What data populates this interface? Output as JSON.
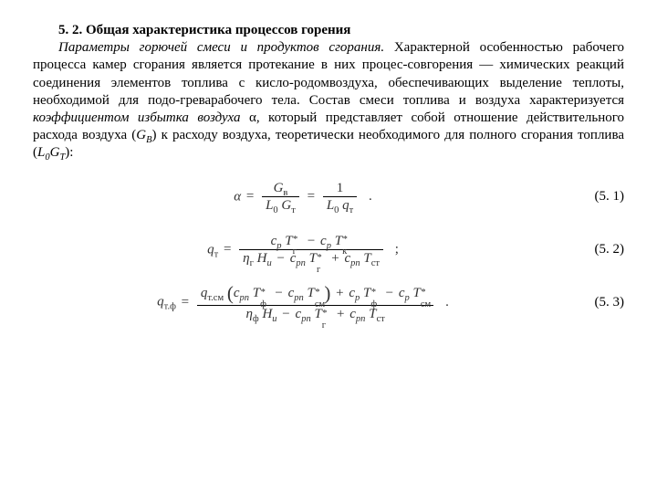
{
  "heading": "5. 2. Общая характеристика процессов горения",
  "para_lead": "Параметры горючей смеси и продуктов сгорания.",
  "para_body1": " Характерной особенностью рабочего процесса камер сгорания является протекание в них процес-совгорения — химических реакций соединения элементов топлива с кисло-родомвоздуха, обеспечивающих выделение теплоты, необходимой для подо-греварабочего тела. Состав смеси топлива и воздуха характеризуется ",
  "para_italic2": "коэффициентом избытка воздуха",
  "para_alpha": " α",
  "para_body2": ", который представляет собой отношение действительного расхода воздуха (",
  "para_GB": "G",
  "para_GBsub": "В",
  "para_body3": ") к расходу воздуха, теоретически необходимого для полного сгорания топлива (",
  "para_L0GT_L": "L",
  "para_L0GT_0": "0",
  "para_L0GT_G": "G",
  "para_L0GT_T": "T",
  "para_body4": "):",
  "eq1_no": "(5. 1)",
  "eq2_no": "(5. 2)",
  "eq3_no": "(5. 3)",
  "colors": {
    "text": "#000000",
    "bg": "#ffffff",
    "math": "#333333"
  },
  "fonts": {
    "family": "Times New Roman",
    "body_size_pt": 11,
    "math_size_pt": 11
  }
}
